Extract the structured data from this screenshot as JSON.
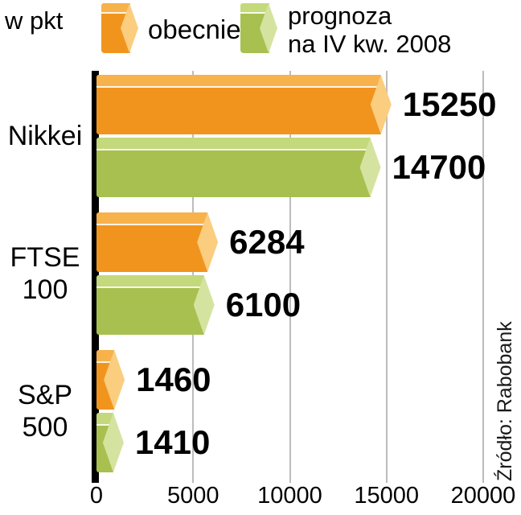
{
  "meta": {
    "unit_label": "w pkt",
    "source": "Źródło: Rabobank"
  },
  "legend": {
    "items": [
      {
        "lines": [
          "obecnie"
        ]
      },
      {
        "lines": [
          "prognoza",
          "na IV kw. 2008"
        ]
      }
    ]
  },
  "colors": {
    "orange_main": "#F1941E",
    "orange_top": "#F7B24B",
    "orange_cap": "#FACD7F",
    "green_main": "#A7C04F",
    "green_top": "#C4D97C",
    "green_cap": "#D5E3A0",
    "gridline": "#BCBCBC",
    "axis": "#000000"
  },
  "chart_data": {
    "type": "bar",
    "orientation": "horizontal",
    "title": "",
    "unit": "w pkt",
    "source": "Źródło: Rabobank",
    "categories": [
      "Nikkei",
      "FTSE 100",
      "S&P 500"
    ],
    "categories_display": [
      [
        "Nikkei"
      ],
      [
        "FTSE",
        "100"
      ],
      [
        "S&P",
        "500"
      ]
    ],
    "series": [
      {
        "name": "obecnie",
        "values": [
          15250,
          6284,
          1460
        ],
        "color_main": "#F1941E",
        "color_top": "#F7B24B",
        "color_cap": "#FACD7F"
      },
      {
        "name": "prognoza na IV kw. 2008",
        "values": [
          14700,
          6100,
          1410
        ],
        "color_main": "#A7C04F",
        "color_top": "#C4D97C",
        "color_cap": "#D5E3A0"
      }
    ],
    "xlim": [
      0,
      20000
    ],
    "xticks": [
      0,
      5000,
      10000,
      15000,
      20000
    ],
    "grid": true,
    "legend_position": "top"
  }
}
